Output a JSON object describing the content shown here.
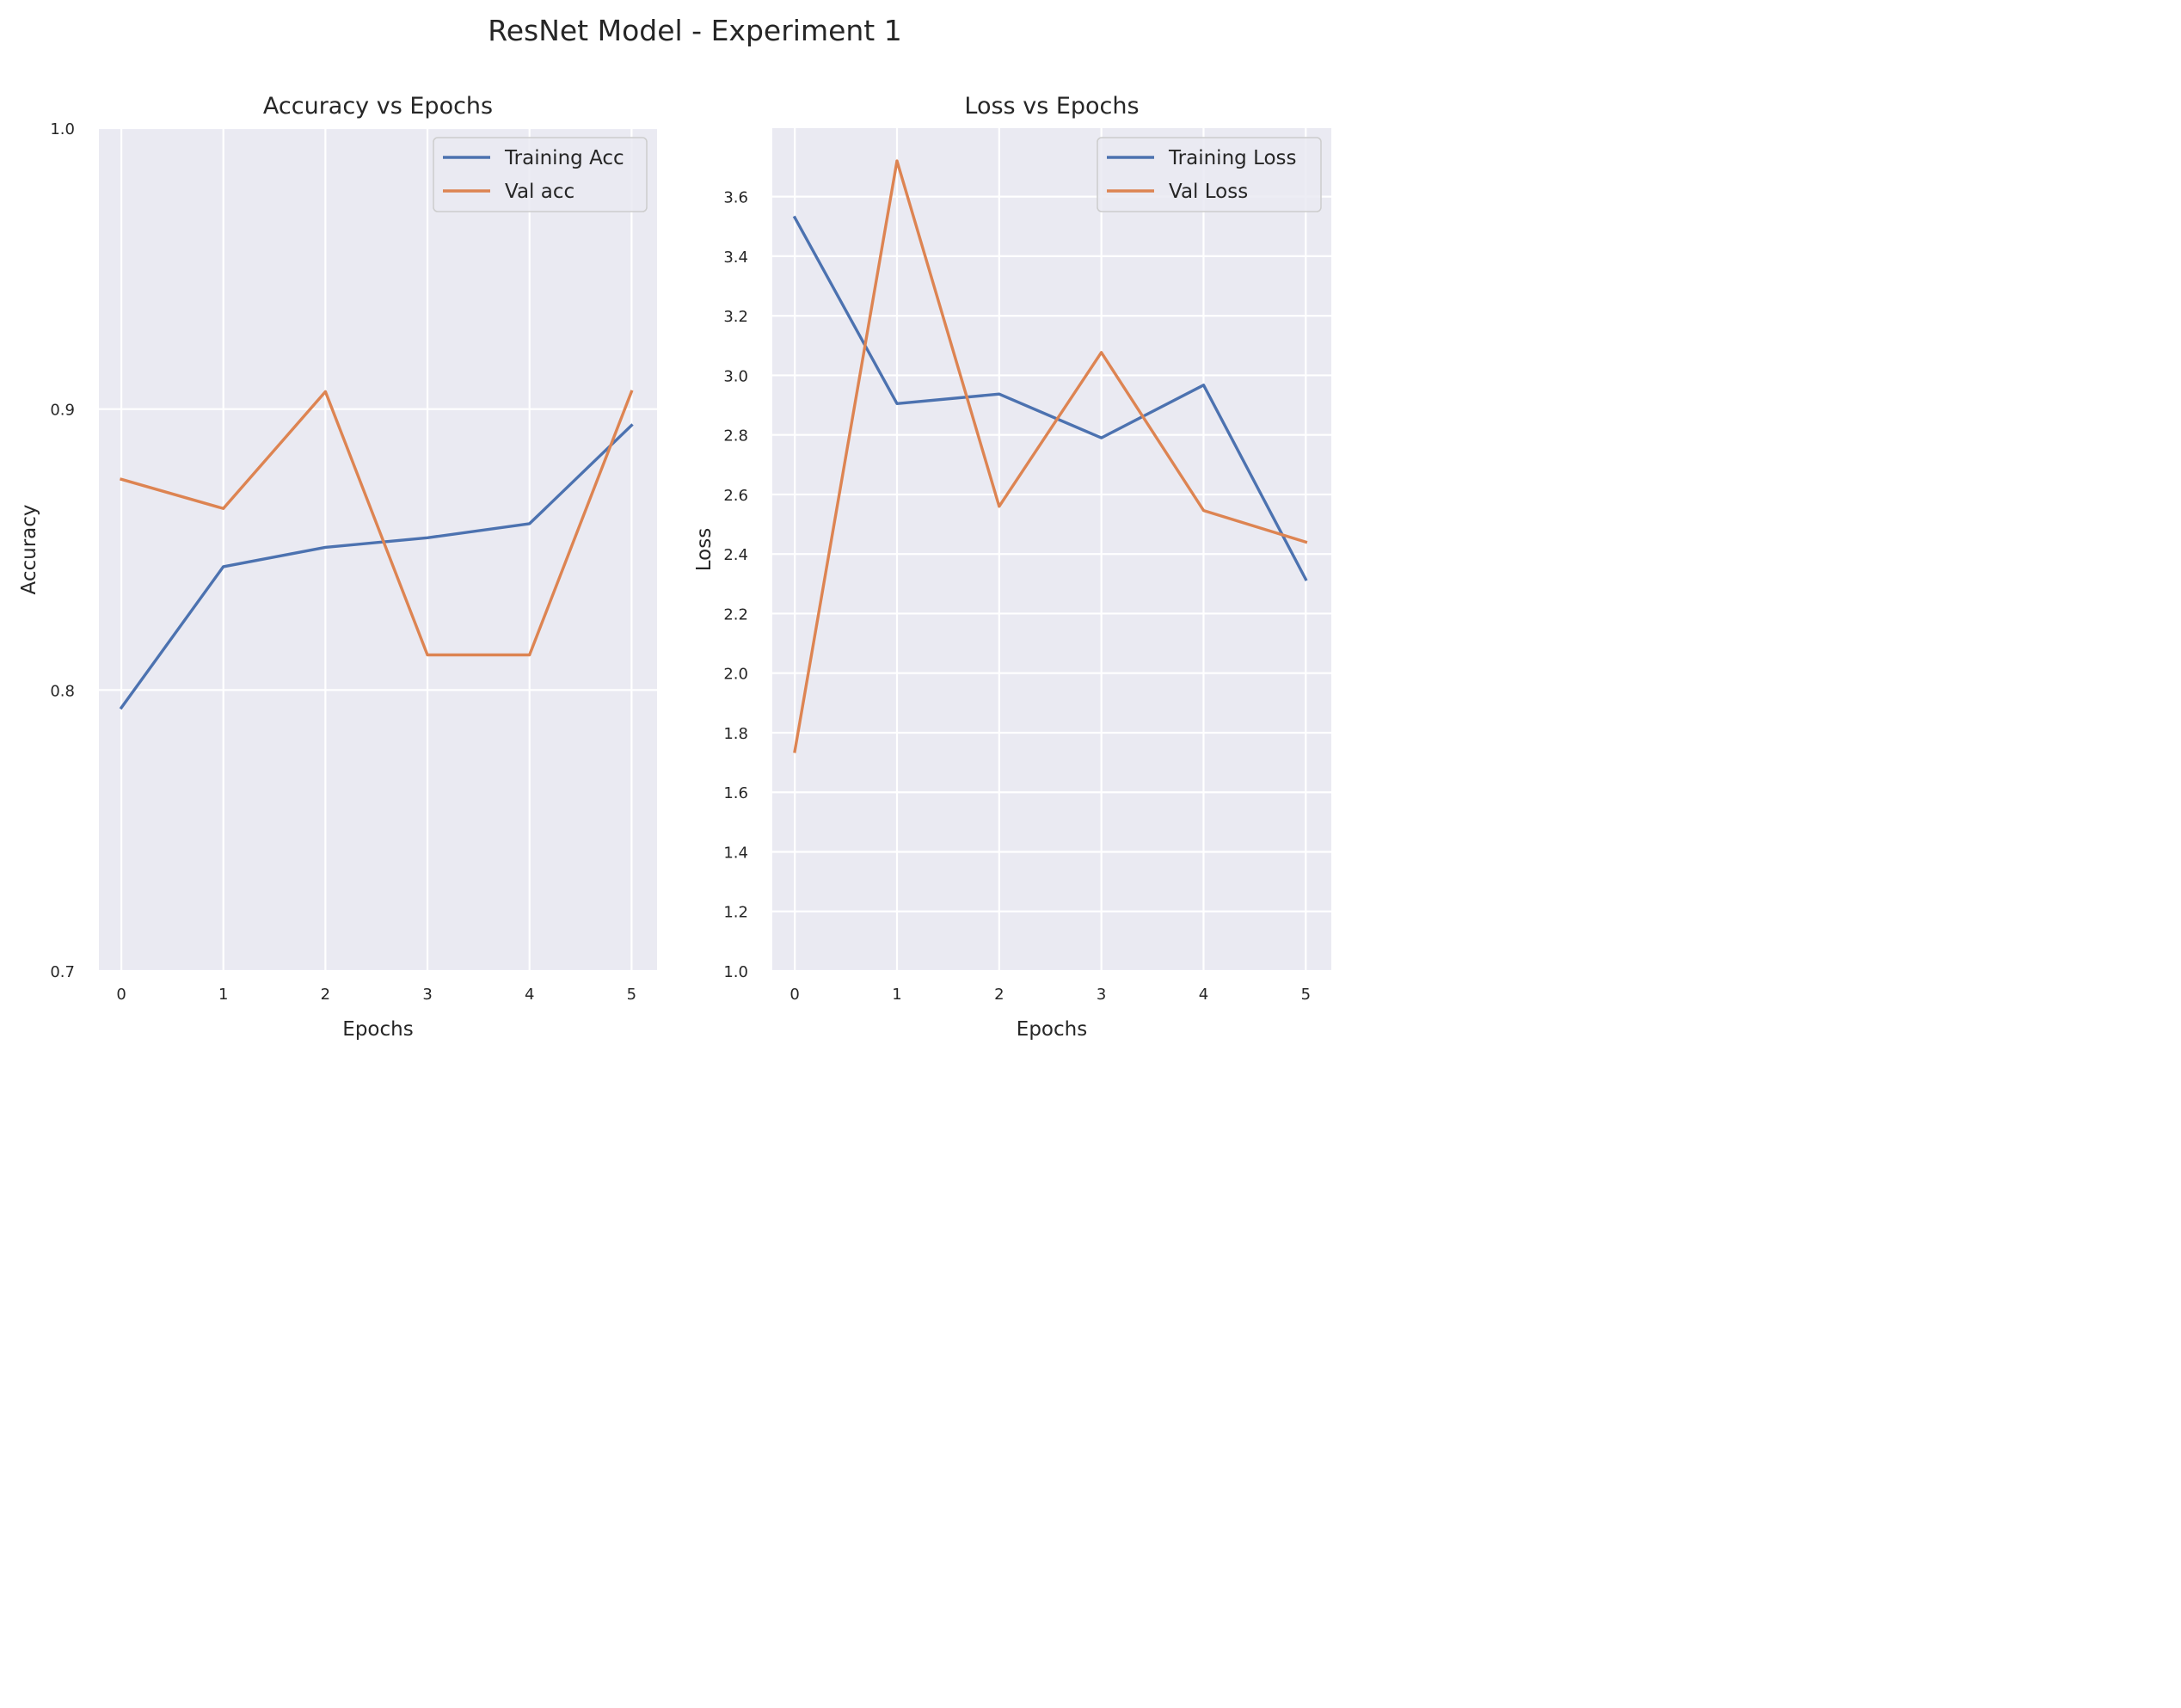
{
  "figure": {
    "suptitle": "ResNet Model - Experiment 1"
  },
  "colors": {
    "series1": "#4c72b0",
    "series2": "#dd8452",
    "axes_bg": "#eaeaf2",
    "grid": "#ffffff"
  },
  "chart_data": [
    {
      "type": "line",
      "title": "Accuracy vs Epochs",
      "xlabel": "Epochs",
      "ylabel": "Accuracy",
      "x": [
        0,
        1,
        2,
        3,
        4,
        5
      ],
      "xticks": [
        "0",
        "1",
        "2",
        "3",
        "4",
        "5"
      ],
      "yticks": [
        "0.7",
        "0.8",
        "0.9",
        "1.0"
      ],
      "xlim": [
        -0.22,
        5.25
      ],
      "ylim": [
        0.7,
        1.0
      ],
      "grid": true,
      "legend_position": "top-right",
      "series": [
        {
          "name": "Training Acc",
          "values": [
            0.7937,
            0.8439,
            0.8508,
            0.8542,
            0.8592,
            0.8942
          ]
        },
        {
          "name": "Val acc",
          "values": [
            0.875,
            0.8646,
            0.9062,
            0.8125,
            0.8125,
            0.9062
          ]
        }
      ]
    },
    {
      "type": "line",
      "title": "Loss vs Epochs",
      "xlabel": "Epochs",
      "ylabel": "Loss",
      "x": [
        0,
        1,
        2,
        3,
        4,
        5
      ],
      "xticks": [
        "0",
        "1",
        "2",
        "3",
        "4",
        "5"
      ],
      "yticks": [
        "1.0",
        "1.2",
        "1.4",
        "1.6",
        "1.8",
        "2.0",
        "2.2",
        "2.4",
        "2.6",
        "2.8",
        "3.0",
        "3.2",
        "3.4",
        "3.6"
      ],
      "xlim": [
        -0.22,
        5.25
      ],
      "ylim": [
        1.0,
        3.83
      ],
      "grid": true,
      "legend_position": "top-right",
      "series": [
        {
          "name": "Training Loss",
          "values": [
            3.53,
            2.905,
            2.937,
            2.79,
            2.967,
            2.315
          ]
        },
        {
          "name": "Val Loss",
          "values": [
            1.737,
            3.72,
            2.56,
            3.077,
            2.546,
            2.44
          ]
        }
      ]
    }
  ]
}
